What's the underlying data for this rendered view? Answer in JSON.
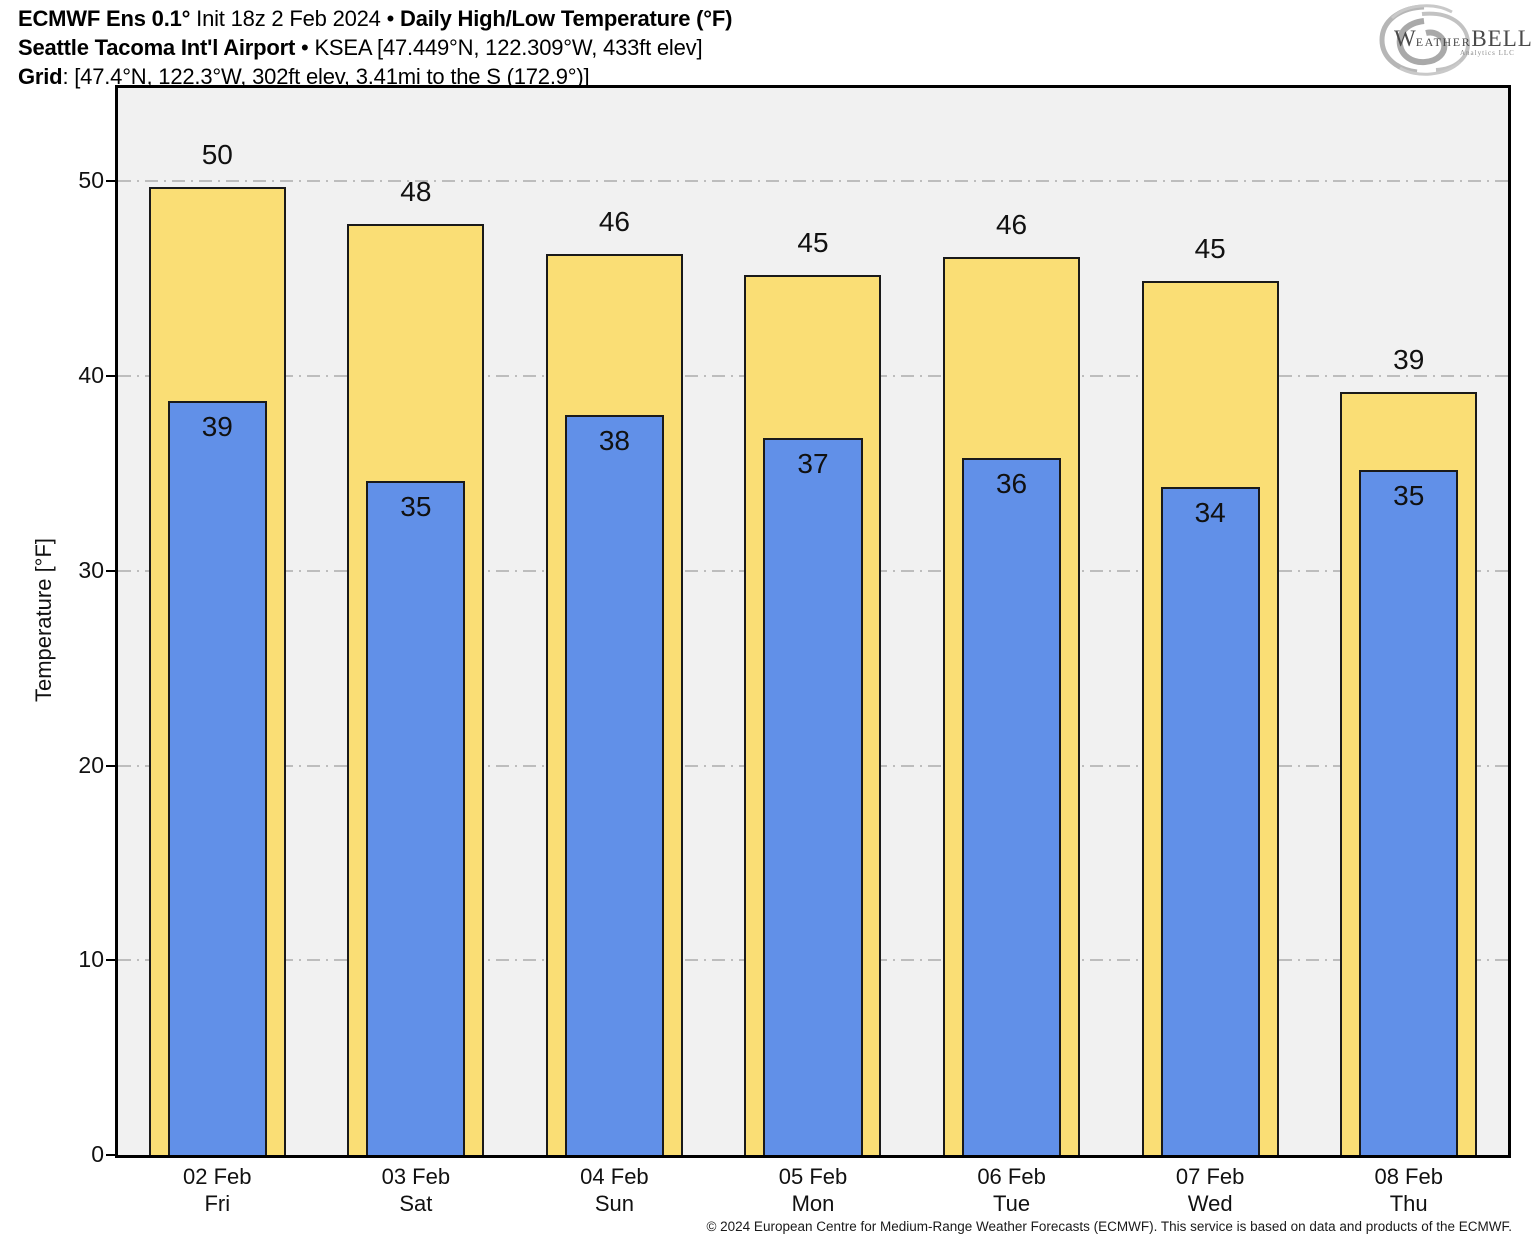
{
  "header": {
    "line1": {
      "bold1": "ECMWF Ens 0.1°",
      "regular1": " Init 18z 2 Feb 2024 • ",
      "bold2": "Daily High/Low Temperature (°F)"
    },
    "line2": {
      "bold1": "Seattle Tacoma Int'l Airport",
      "regular1": " • KSEA [47.449°N, 122.309°W, 433ft elev]"
    },
    "line3": {
      "bold1": "Grid",
      "regular1": ": [47.4°N, 122.3°W, 302ft elev, 3.41mi to the S (172.9°)]"
    }
  },
  "logo": {
    "w": "W",
    "eather": "EATHER",
    "bell": "BELL",
    "subtext": "Analytics LLC"
  },
  "footer": {
    "copyright": "© 2024 European Centre for Medium-Range Weather Forecasts (ECMWF). This service is based on data and products of the ECMWF."
  },
  "chart_data": {
    "type": "bar",
    "title": "ECMWF Ens 0.1° Init 18z 2 Feb 2024 • Daily High/Low Temperature (°F)",
    "station": "Seattle Tacoma Int'l Airport (KSEA)",
    "xlabel": "",
    "ylabel": "Temperature [°F]",
    "ylim": [
      0,
      54.8
    ],
    "yticks": [
      0,
      10,
      20,
      30,
      40,
      50
    ],
    "grid": true,
    "gridline_style": "dash-dot",
    "plot_background": "#f1f1f1",
    "categories": [
      {
        "date": "02 Feb",
        "weekday": "Fri"
      },
      {
        "date": "03 Feb",
        "weekday": "Sat"
      },
      {
        "date": "04 Feb",
        "weekday": "Sun"
      },
      {
        "date": "05 Feb",
        "weekday": "Mon"
      },
      {
        "date": "06 Feb",
        "weekday": "Tue"
      },
      {
        "date": "07 Feb",
        "weekday": "Wed"
      },
      {
        "date": "08 Feb",
        "weekday": "Thu"
      }
    ],
    "series": [
      {
        "name": "Daily High",
        "color": "#fade75",
        "border_color": "#1a1a1a",
        "values": [
          50,
          48,
          46,
          45,
          46,
          45,
          39
        ],
        "bar_top_values": [
          49.7,
          47.8,
          46.3,
          45.2,
          46.1,
          44.9,
          39.2
        ]
      },
      {
        "name": "Daily Low",
        "color": "#6190e8",
        "border_color": "#1a1a1a",
        "values": [
          39,
          35,
          38,
          37,
          36,
          34,
          35
        ],
        "bar_top_values": [
          38.7,
          34.6,
          38.0,
          36.8,
          35.8,
          34.3,
          35.2
        ]
      }
    ]
  }
}
